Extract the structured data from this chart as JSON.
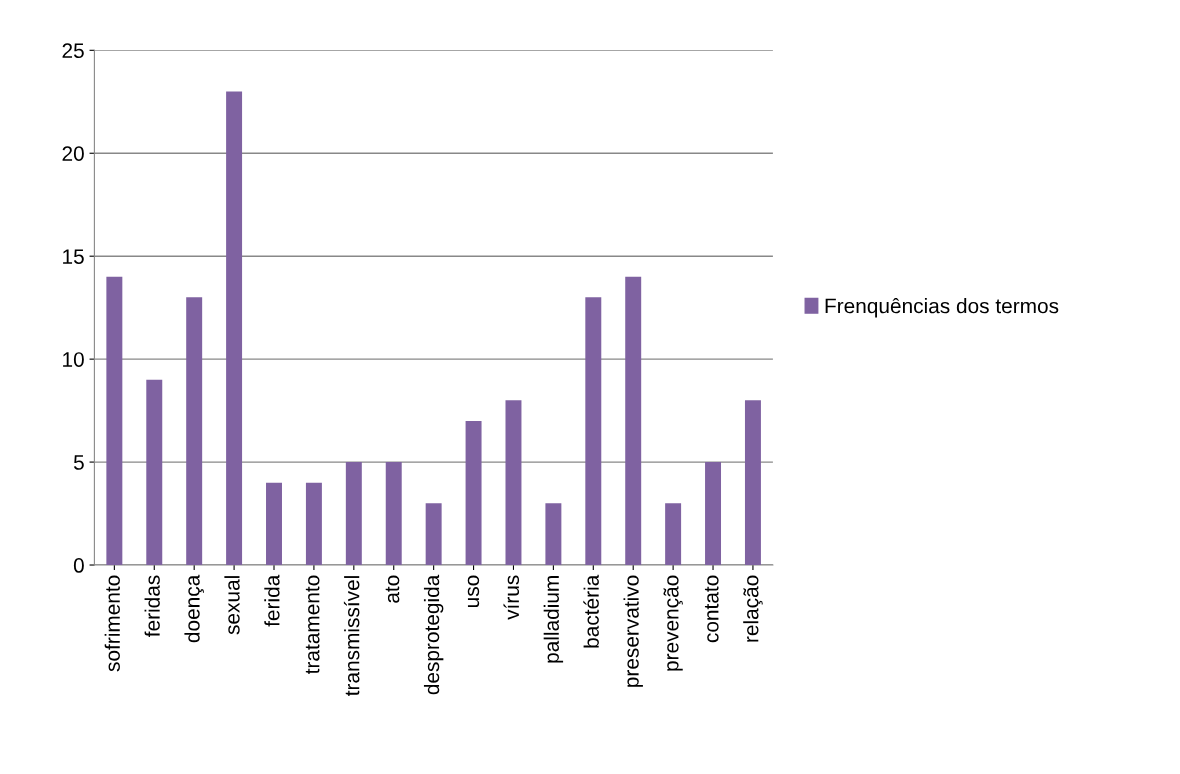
{
  "chart_data": {
    "type": "bar",
    "categories": [
      "sofrimento",
      "feridas",
      "doença",
      "sexual",
      "ferida",
      "tratamento",
      "transmissível",
      "ato",
      "desprotegida",
      "uso",
      "vírus",
      "palladium",
      "bactéria",
      "preservativo",
      "prevenção",
      "contato",
      "relação"
    ],
    "series": [
      {
        "name": "Frenquências dos termos",
        "color": "#7f62a1",
        "values": [
          14,
          9,
          13,
          23,
          4,
          4,
          5,
          5,
          3,
          7,
          8,
          3,
          13,
          14,
          3,
          5,
          8
        ]
      }
    ],
    "ylim": [
      0,
      25
    ],
    "yticks": [
      0,
      5,
      10,
      15,
      20,
      25
    ],
    "grid": "y",
    "legend": "right"
  }
}
